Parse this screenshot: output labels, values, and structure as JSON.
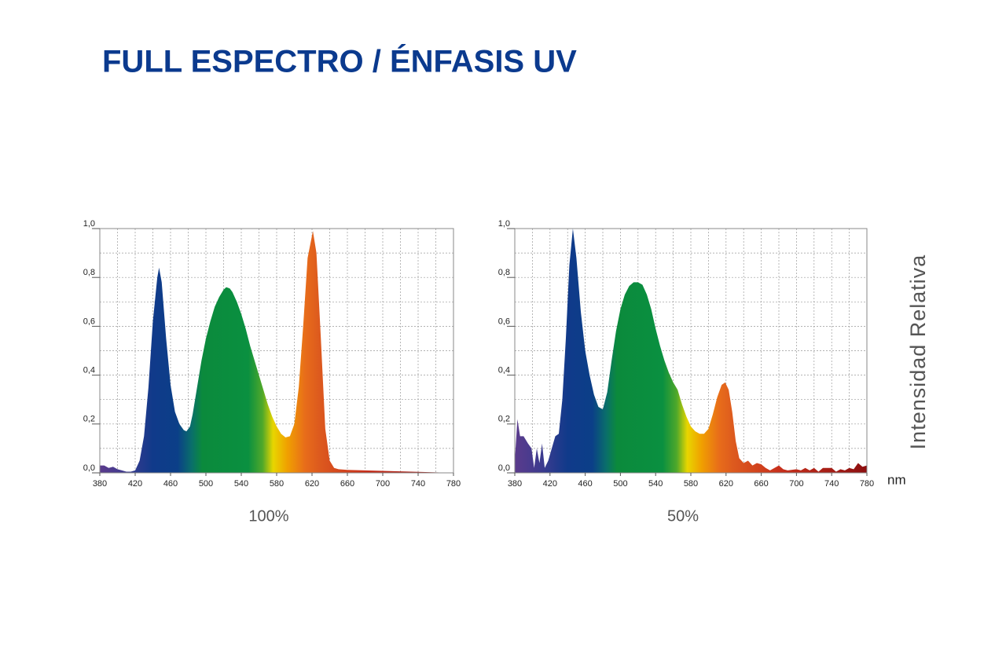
{
  "title": "FULL ESPECTRO / ÉNFASIS UV",
  "chart_data": [
    {
      "type": "area",
      "caption": "100%",
      "x": [
        380,
        385,
        390,
        395,
        400,
        405,
        410,
        415,
        420,
        425,
        430,
        435,
        440,
        445,
        447,
        450,
        455,
        460,
        465,
        470,
        475,
        478,
        482,
        485,
        490,
        495,
        500,
        505,
        510,
        515,
        520,
        523,
        527,
        530,
        535,
        540,
        545,
        550,
        555,
        560,
        565,
        570,
        575,
        580,
        585,
        590,
        595,
        600,
        605,
        610,
        615,
        621,
        625,
        630,
        635,
        640,
        645,
        650,
        660,
        680,
        700,
        720,
        740,
        760,
        780
      ],
      "values": [
        0.03,
        0.03,
        0.02,
        0.025,
        0.015,
        0.01,
        0.005,
        0.005,
        0.01,
        0.05,
        0.15,
        0.35,
        0.62,
        0.8,
        0.84,
        0.78,
        0.55,
        0.36,
        0.25,
        0.2,
        0.175,
        0.17,
        0.19,
        0.24,
        0.35,
        0.46,
        0.55,
        0.62,
        0.68,
        0.72,
        0.75,
        0.76,
        0.755,
        0.74,
        0.7,
        0.65,
        0.59,
        0.52,
        0.46,
        0.4,
        0.34,
        0.28,
        0.23,
        0.19,
        0.16,
        0.145,
        0.15,
        0.2,
        0.35,
        0.6,
        0.88,
        0.99,
        0.9,
        0.55,
        0.18,
        0.05,
        0.02,
        0.015,
        0.012,
        0.01,
        0.008,
        0.006,
        0.004,
        0.002,
        0
      ],
      "xlim": [
        380,
        780
      ],
      "ylim": [
        0,
        1
      ],
      "xticks": [
        380,
        420,
        460,
        500,
        540,
        580,
        620,
        660,
        700,
        740,
        780
      ],
      "yticks": [
        {
          "value": 0,
          "label": "0,0"
        },
        {
          "value": 0.2,
          "label": "0,2"
        },
        {
          "value": 0.4,
          "label": "0,4"
        },
        {
          "value": 0.6,
          "label": "0,6"
        },
        {
          "value": 0.8,
          "label": "0,8"
        },
        {
          "value": 1,
          "label": "1,0"
        }
      ],
      "grid": true
    },
    {
      "type": "area",
      "caption": "50%",
      "x_label": "nm",
      "y_label": "Intensidad Relativa",
      "x": [
        380,
        383,
        386,
        390,
        395,
        399,
        402,
        405,
        408,
        411,
        414,
        418,
        422,
        426,
        430,
        434,
        438,
        442,
        446,
        450,
        455,
        460,
        465,
        470,
        475,
        480,
        485,
        490,
        495,
        500,
        505,
        510,
        515,
        520,
        525,
        530,
        535,
        540,
        545,
        550,
        555,
        560,
        565,
        570,
        575,
        580,
        585,
        590,
        595,
        600,
        605,
        610,
        615,
        619,
        623,
        627,
        631,
        635,
        640,
        645,
        650,
        655,
        660,
        665,
        670,
        675,
        680,
        685,
        690,
        700,
        705,
        710,
        715,
        720,
        725,
        730,
        740,
        745,
        750,
        755,
        760,
        765,
        770,
        775,
        780
      ],
      "values": [
        0.05,
        0.22,
        0.15,
        0.15,
        0.12,
        0.1,
        0.02,
        0.1,
        0.04,
        0.12,
        0.02,
        0.05,
        0.1,
        0.15,
        0.16,
        0.3,
        0.55,
        0.85,
        1.0,
        0.88,
        0.66,
        0.5,
        0.4,
        0.32,
        0.27,
        0.26,
        0.33,
        0.46,
        0.58,
        0.67,
        0.73,
        0.765,
        0.78,
        0.78,
        0.77,
        0.73,
        0.67,
        0.59,
        0.52,
        0.46,
        0.41,
        0.37,
        0.34,
        0.28,
        0.23,
        0.19,
        0.17,
        0.16,
        0.16,
        0.18,
        0.24,
        0.31,
        0.36,
        0.37,
        0.34,
        0.25,
        0.13,
        0.06,
        0.04,
        0.05,
        0.03,
        0.04,
        0.035,
        0.02,
        0.01,
        0.02,
        0.03,
        0.015,
        0.01,
        0.015,
        0.01,
        0.02,
        0.01,
        0.02,
        0.005,
        0.02,
        0.02,
        0.005,
        0.015,
        0.01,
        0.02,
        0.015,
        0.04,
        0.025,
        0.03
      ],
      "xlim": [
        380,
        780
      ],
      "ylim": [
        0,
        1
      ],
      "xticks": [
        380,
        420,
        460,
        500,
        540,
        580,
        620,
        660,
        700,
        740,
        780
      ],
      "yticks": [
        {
          "value": 0,
          "label": "0,0"
        },
        {
          "value": 0.2,
          "label": "0,2"
        },
        {
          "value": 0.4,
          "label": "0,4"
        },
        {
          "value": 0.6,
          "label": "0,6"
        },
        {
          "value": 0.8,
          "label": "0,8"
        },
        {
          "value": 1,
          "label": "1,0"
        }
      ],
      "grid": true
    }
  ]
}
